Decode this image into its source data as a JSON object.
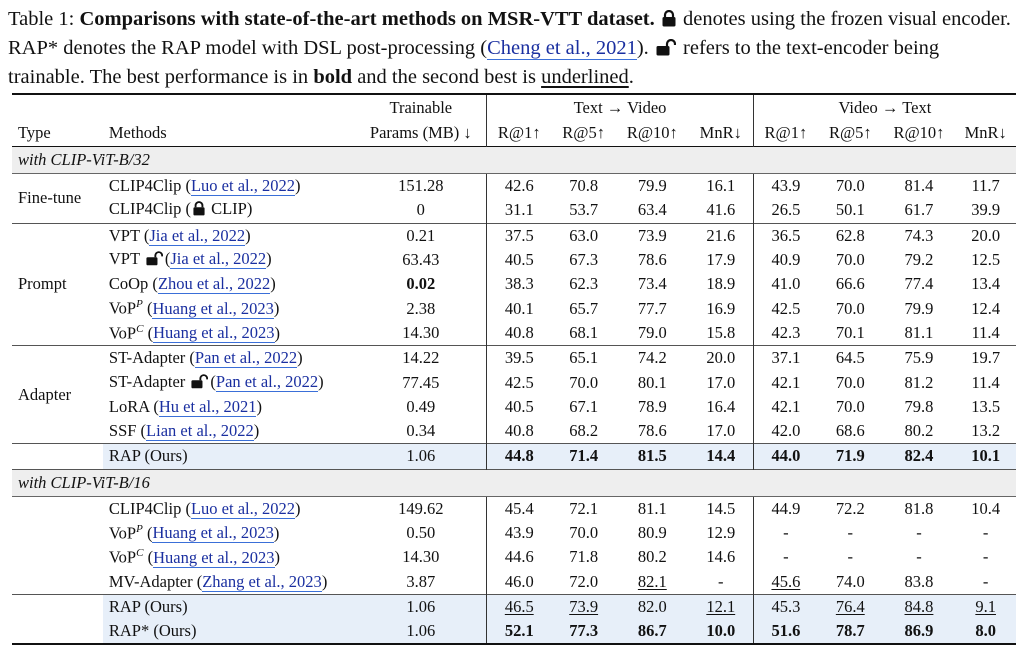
{
  "caption": {
    "label": "Table 1: ",
    "title": "Comparisons with state-of-the-art methods on MSR-VTT dataset.",
    "frozen_text": " denotes using the frozen visual encoder. RAP* denotes the RAP model with DSL post-processing (",
    "dsl_cite": "Cheng et al., 2021",
    "after_cite": "). ",
    "trainable_text": " refers to the text-encoder being trainable. The best performance is in ",
    "bold_word": "bold",
    "mid_text": " and the second best is ",
    "underlined_word": "underlined",
    "end": "."
  },
  "header": {
    "type": "Type",
    "methods": "Methods",
    "trainable_line1": "Trainable",
    "trainable_line2": "Params (MB) ↓",
    "t2v": "Text → Video",
    "v2t": "Video → Text",
    "metrics": [
      "R@1↑",
      "R@5↑",
      "R@10↑",
      "MnR↓",
      "R@1↑",
      "R@5↑",
      "R@10↑",
      "MnR↓"
    ]
  },
  "sections": {
    "b32": "with CLIP-ViT-B/32",
    "b16": "with CLIP-ViT-B/16"
  },
  "groups": {
    "finetune": "Fine-tune",
    "prompt": "Prompt",
    "adapter": "Adapter"
  },
  "rows": [
    {
      "name": "CLIP4Clip (",
      "cite": "Luo et al., 2022",
      "tail": ")",
      "params": "151.28",
      "vals": [
        "42.6",
        "70.8",
        "79.9",
        "16.1",
        "43.9",
        "70.0",
        "81.4",
        "11.7"
      ]
    },
    {
      "name": "CLIP4Clip (",
      "cite": "",
      "tail": " CLIP)",
      "params": "0",
      "vals": [
        "31.1",
        "53.7",
        "63.4",
        "41.6",
        "26.5",
        "50.1",
        "61.7",
        "39.9"
      ]
    },
    {
      "name": "VPT (",
      "cite": "Jia et al., 2022",
      "tail": ")",
      "params": "0.21",
      "vals": [
        "37.5",
        "63.0",
        "73.9",
        "21.6",
        "36.5",
        "62.8",
        "74.3",
        "20.0"
      ]
    },
    {
      "name": "VPT ",
      "cite": "Jia et al., 2022",
      "tail": ")",
      "params": "63.43",
      "vals": [
        "40.5",
        "67.3",
        "78.6",
        "17.9",
        "40.9",
        "70.0",
        "79.2",
        "12.5"
      ]
    },
    {
      "name": "CoOp (",
      "cite": "Zhou et al., 2022",
      "tail": ")",
      "params": "0.02",
      "vals": [
        "38.3",
        "62.3",
        "73.4",
        "18.9",
        "41.0",
        "66.6",
        "77.4",
        "13.4"
      ]
    },
    {
      "name": "VoP",
      "sup": "P",
      "cite": "Huang et al., 2023",
      "tail": ")",
      "params": "2.38",
      "vals": [
        "40.1",
        "65.7",
        "77.7",
        "16.9",
        "42.5",
        "70.0",
        "79.9",
        "12.4"
      ]
    },
    {
      "name": "VoP",
      "sup": "C",
      "cite": "Huang et al., 2023",
      "tail": ")",
      "params": "14.30",
      "vals": [
        "40.8",
        "68.1",
        "79.0",
        "15.8",
        "42.3",
        "70.1",
        "81.1",
        "11.4"
      ]
    },
    {
      "name": "ST-Adapter (",
      "cite": "Pan et al., 2022",
      "tail": ")",
      "params": "14.22",
      "vals": [
        "39.5",
        "65.1",
        "74.2",
        "20.0",
        "37.1",
        "64.5",
        "75.9",
        "19.7"
      ]
    },
    {
      "name": "ST-Adapter ",
      "cite": "Pan et al., 2022",
      "tail": ")",
      "params": "77.45",
      "vals": [
        "42.5",
        "70.0",
        "80.1",
        "17.0",
        "42.1",
        "70.0",
        "81.2",
        "11.4"
      ]
    },
    {
      "name": "LoRA (",
      "cite": "Hu et al., 2021",
      "tail": ")",
      "params": "0.49",
      "vals": [
        "40.5",
        "67.1",
        "78.9",
        "16.4",
        "42.1",
        "70.0",
        "79.8",
        "13.5"
      ]
    },
    {
      "name": "SSF (",
      "cite": "Lian et al., 2022",
      "tail": ")",
      "params": "0.34",
      "vals": [
        "40.8",
        "68.2",
        "78.6",
        "17.0",
        "42.0",
        "68.6",
        "80.2",
        "13.2"
      ]
    },
    {
      "name": "RAP (Ours)",
      "cite": "",
      "tail": "",
      "params": "1.06",
      "vals": [
        "44.8",
        "71.4",
        "81.5",
        "14.4",
        "44.0",
        "71.9",
        "82.4",
        "10.1"
      ]
    },
    {
      "name": "CLIP4Clip (",
      "cite": "Luo et al., 2022",
      "tail": ")",
      "params": "149.62",
      "vals": [
        "45.4",
        "72.1",
        "81.1",
        "14.5",
        "44.9",
        "72.2",
        "81.8",
        "10.4"
      ]
    },
    {
      "name": "VoP",
      "sup": "P",
      "cite": "Huang et al., 2023",
      "tail": ")",
      "params": "0.50",
      "vals": [
        "43.9",
        "70.0",
        "80.9",
        "12.9",
        "-",
        "-",
        "-",
        "-"
      ]
    },
    {
      "name": "VoP",
      "sup": "C",
      "cite": "Huang et al., 2023",
      "tail": ")",
      "params": "14.30",
      "vals": [
        "44.6",
        "71.8",
        "80.2",
        "14.6",
        "-",
        "-",
        "-",
        "-"
      ]
    },
    {
      "name": "MV-Adapter (",
      "cite": "Zhang et al., 2023",
      "tail": ")",
      "params": "3.87",
      "vals": [
        "46.0",
        "72.0",
        "82.1",
        "-",
        "45.6",
        "74.0",
        "83.8",
        "-"
      ]
    },
    {
      "name": "RAP (Ours)",
      "cite": "",
      "tail": "",
      "params": "1.06",
      "vals": [
        "46.5",
        "73.9",
        "82.0",
        "12.1",
        "45.3",
        "76.4",
        "84.8",
        "9.1"
      ]
    },
    {
      "name": "RAP* (Ours)",
      "cite": "",
      "tail": "",
      "params": "1.06",
      "vals": [
        "52.1",
        "77.3",
        "86.7",
        "10.0",
        "51.6",
        "78.7",
        "86.9",
        "8.0"
      ]
    }
  ]
}
